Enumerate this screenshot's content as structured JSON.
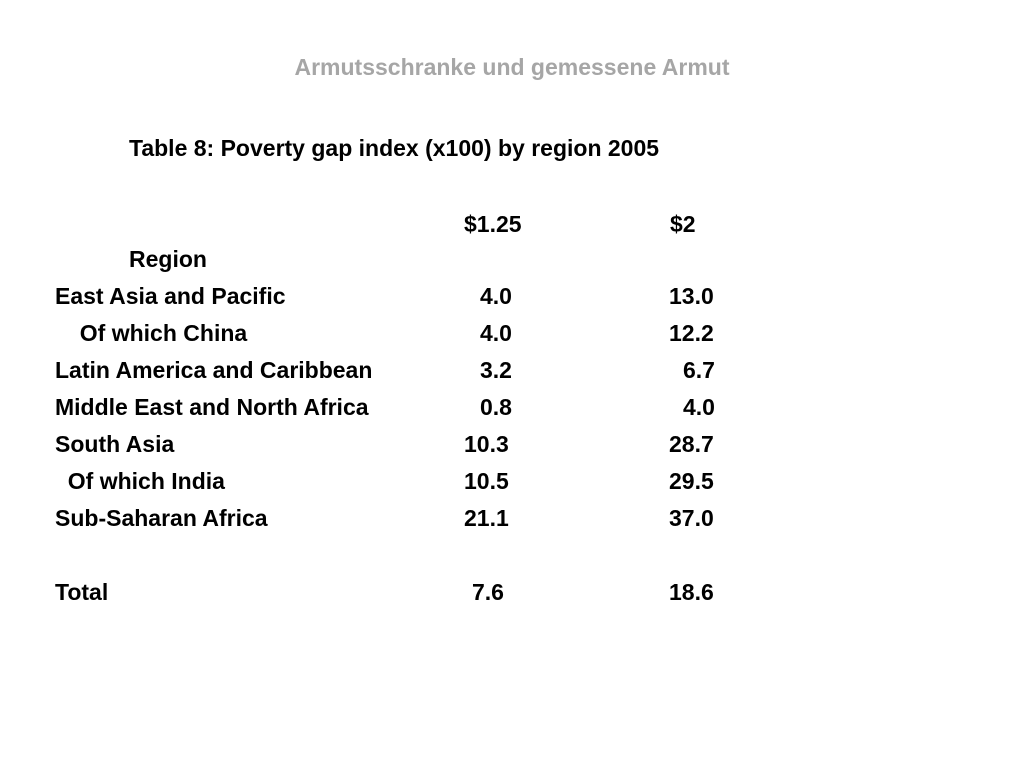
{
  "slide": {
    "title": "Armutsschranke und gemessene Armut"
  },
  "table": {
    "caption": "Table 8: Poverty gap index (x100) by region 2005",
    "column_headers": [
      "$1.25",
      "$2"
    ],
    "region_header": "Region",
    "rows": [
      {
        "region": "East Asia and Pacific",
        "v1": "4.0",
        "v2": "13.0"
      },
      {
        "region": "  Of which China",
        "v1": "4.0",
        "v2": "12.2"
      },
      {
        "region": "Latin America and Caribbean",
        "v1": "3.2",
        "v2": "6.7"
      },
      {
        "region": "Middle East and North Africa",
        "v1": "0.8",
        "v2": "4.0"
      },
      {
        "region": "South Asia",
        "v1": "10.3",
        "v2": "28.7"
      },
      {
        "region": "  Of which India",
        "v1": "10.5",
        "v2": "29.5"
      },
      {
        "region": "Sub-Saharan Africa",
        "v1": "21.1",
        "v2": "37.0"
      }
    ],
    "total": {
      "region": "Total",
      "v1": "7.6",
      "v2": "18.6"
    }
  }
}
